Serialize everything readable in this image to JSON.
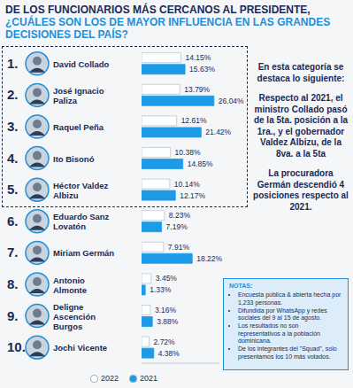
{
  "chart_data": {
    "type": "bar",
    "orientation": "horizontal",
    "title": "DE LOS FUNCIONARIOS MÁS CERCANOS AL PRESIDENTE,",
    "subtitle": "¿CUÁLES SON LOS DE MAYOR INFLUENCIA EN LAS GRANDES DECISIONES DEL PAÍS?",
    "categories": [
      "David Collado",
      "José Ignacio Paliza",
      "Raquel Peña",
      "Ito Bisonó",
      "Héctor Valdez Albizu",
      "Eduardo Sanz Lovatón",
      "Miriam Germán",
      "Antonio Almonte",
      "Deligne Ascención Burgos",
      "Jochi Vicente"
    ],
    "ranks": [
      "1.",
      "2.",
      "3.",
      "4.",
      "5.",
      "6.",
      "7.",
      "8.",
      "9.",
      "10."
    ],
    "series": [
      {
        "name": "2022",
        "color": "#ffffff",
        "values": [
          14.15,
          13.79,
          12.61,
          10.38,
          10.14,
          8.23,
          7.91,
          3.45,
          3.16,
          2.72
        ],
        "value_labels": [
          "14.15%",
          "13.79%",
          "12.61%",
          "10.38%",
          "10.14%",
          "8.23%",
          "7.91%",
          "3.45%",
          "3.16%",
          "2.72%"
        ]
      },
      {
        "name": "2021",
        "color": "#1e9be6",
        "values": [
          15.63,
          26.04,
          21.42,
          14.85,
          12.17,
          7.19,
          18.22,
          1.33,
          3.88,
          4.38
        ],
        "value_labels": [
          "15.63%",
          "26.04%",
          "21.42%",
          "14.85%",
          "12.17%",
          "7.19%",
          "18.22%",
          "1.33%",
          "3.88%",
          "4.38%"
        ]
      }
    ],
    "xlim": [
      0,
      28
    ],
    "tick_labels": false,
    "grid": false,
    "data_labels": true,
    "legend": "bottom"
  },
  "highlights": {
    "heading": "En esta categoría se destaca lo siguiente:",
    "items": [
      "Respecto al 2021, el ministro Collado pasó de la 5ta. posición a la 1ra., y el gobernador Valdez Albizu, de la 8va. a la 5ta",
      "La procuradora Germán descendió 4 posiciones respecto al 2021."
    ]
  },
  "notes": {
    "title": "NOTAS:",
    "items": [
      "Encuesta pública & abierta hecha por 1,233 personas.",
      "Difundida por WhatsApp y redes sociales del 9 al 15 de agosto.",
      "Los resultados no son representativos a la población dominicana.",
      "De los integrantes del \"Squad\", solo presentamos los 10 más votados."
    ]
  }
}
